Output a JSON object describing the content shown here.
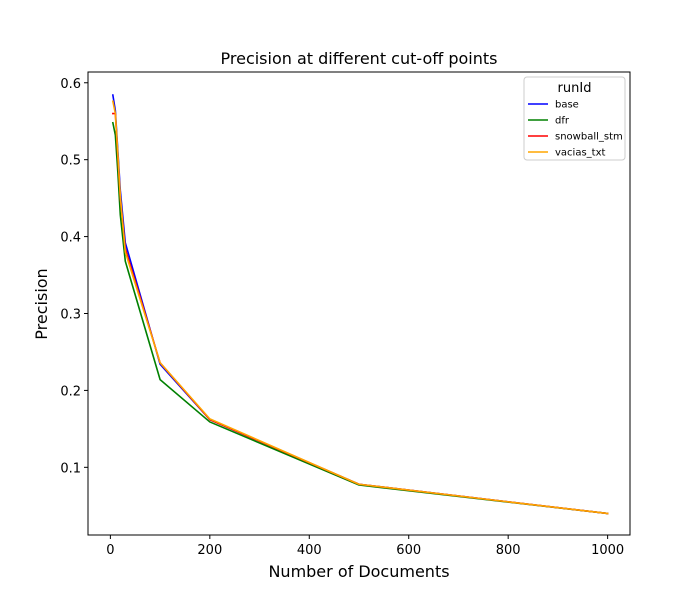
{
  "chart_data": {
    "type": "line",
    "title": "Precision at different cut-off points",
    "xlabel": "Number of Documents",
    "ylabel": "Precision",
    "xlim": [
      -45,
      1045
    ],
    "ylim": [
      0.012,
      0.614
    ],
    "xticks": [
      0,
      200,
      400,
      600,
      800,
      1000
    ],
    "yticks": [
      0.1,
      0.2,
      0.3,
      0.4,
      0.5,
      0.6
    ],
    "grid": false,
    "legend": {
      "title": "runId",
      "position": "top-right"
    },
    "x": [
      5,
      10,
      15,
      20,
      30,
      100,
      200,
      500,
      1000
    ],
    "series": [
      {
        "name": "base",
        "color": "#0000ff",
        "values": [
          0.584,
          0.564,
          0.512,
          0.46,
          0.392,
          0.234,
          0.162,
          0.078,
          0.04
        ]
      },
      {
        "name": "dfr",
        "color": "#008000",
        "values": [
          0.548,
          0.532,
          0.484,
          0.428,
          0.368,
          0.214,
          0.159,
          0.077,
          0.04
        ]
      },
      {
        "name": "snowball_stm",
        "color": "#ff0000",
        "values": [
          0.56,
          0.56,
          0.504,
          0.45,
          0.384,
          0.236,
          0.162,
          0.078,
          0.04
        ]
      },
      {
        "name": "vacias_txt",
        "color": "#ffa500",
        "values": [
          0.576,
          0.56,
          0.508,
          0.452,
          0.38,
          0.236,
          0.163,
          0.078,
          0.04
        ]
      }
    ]
  }
}
